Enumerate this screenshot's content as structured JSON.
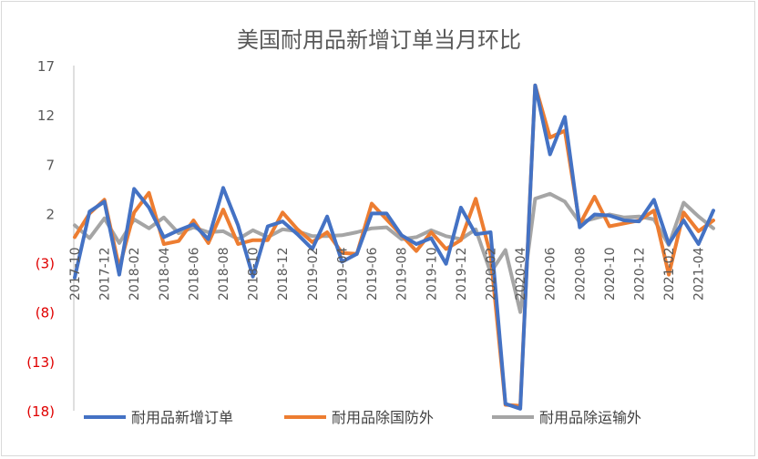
{
  "chart_data": {
    "type": "line",
    "title": "美国耐用品新增订单当月环比",
    "xlabel": "",
    "ylabel": "",
    "ylim": [
      -18,
      17
    ],
    "yticks": [
      17,
      12,
      7,
      2,
      -3,
      -8,
      -13,
      -18
    ],
    "ytick_labels": [
      "17",
      "12",
      "7",
      "2",
      "(3)",
      "(8)",
      "(13)",
      "(18)"
    ],
    "x": [
      "2017-10",
      "2017-11",
      "2017-12",
      "2018-01",
      "2018-02",
      "2018-03",
      "2018-04",
      "2018-05",
      "2018-06",
      "2018-07",
      "2018-08",
      "2018-09",
      "2018-10",
      "2018-11",
      "2018-12",
      "2019-01",
      "2019-02",
      "2019-03",
      "2019-04",
      "2019-05",
      "2019-06",
      "2019-07",
      "2019-08",
      "2019-09",
      "2019-10",
      "2019-11",
      "2019-12",
      "2020-01",
      "2020-02",
      "2020-03",
      "2020-04",
      "2020-05",
      "2020-06",
      "2020-07",
      "2020-08",
      "2020-09",
      "2020-10",
      "2020-11",
      "2020-12",
      "2021-01",
      "2021-02",
      "2021-03",
      "2021-04",
      "2021-05"
    ],
    "xtick_labels": [
      "2017-10",
      "2017-12",
      "2018-02",
      "2018-04",
      "2018-06",
      "2018-08",
      "2018-10",
      "2018-12",
      "2019-02",
      "2019-04",
      "2019-06",
      "2019-08",
      "2019-10",
      "2019-12",
      "2020-02",
      "2020-04",
      "2020-06",
      "2020-08",
      "2020-10",
      "2020-12",
      "2021-02",
      "2021-04"
    ],
    "series": [
      {
        "name": "耐用品新增订单",
        "color": "#4472c4",
        "values": [
          -4.5,
          2.2,
          3.2,
          -4.2,
          4.5,
          2.6,
          -0.4,
          0.3,
          0.9,
          -0.6,
          4.6,
          0.8,
          -4.4,
          0.7,
          1.2,
          -0.1,
          -1.6,
          1.7,
          -2.9,
          -2.1,
          2.0,
          2.0,
          -0.2,
          -1.1,
          -0.5,
          -3.1,
          2.6,
          -0.1,
          0.1,
          -17.3,
          -17.8,
          15.0,
          8.0,
          11.8,
          0.6,
          1.9,
          1.8,
          1.3,
          1.2,
          3.4,
          -1.1,
          1.3,
          -1.1,
          2.3
        ]
      },
      {
        "name": "耐用品除国防外",
        "color": "#ed7d31",
        "values": [
          -0.4,
          2.0,
          3.4,
          -3.5,
          2.1,
          4.1,
          -1.1,
          -0.8,
          1.3,
          -1.0,
          2.4,
          -1.1,
          -0.7,
          -0.7,
          2.1,
          0.4,
          -0.9,
          0.1,
          -2.0,
          -2.1,
          3.0,
          1.4,
          -0.2,
          -1.8,
          0.1,
          -1.6,
          -0.7,
          3.5,
          -2.2,
          -17.4,
          -17.5,
          15.0,
          9.7,
          10.4,
          0.9,
          3.7,
          0.7,
          1.0,
          1.3,
          2.3,
          -4.2,
          2.1,
          0.2,
          1.3
        ]
      },
      {
        "name": "耐用品除运输外",
        "color": "#a5a5a5",
        "values": [
          0.8,
          -0.5,
          1.5,
          -1.0,
          1.4,
          0.5,
          1.6,
          0.0,
          0.6,
          0.1,
          0.2,
          -0.6,
          0.3,
          -0.4,
          0.4,
          0.2,
          -0.3,
          -0.3,
          -0.2,
          0.1,
          0.5,
          0.6,
          -0.6,
          -0.4,
          0.3,
          -0.3,
          -0.6,
          0.4,
          -4.0,
          -1.7,
          -8.0,
          3.5,
          4.0,
          3.2,
          1.1,
          1.5,
          1.9,
          1.6,
          1.7,
          1.4,
          -1.2,
          3.1,
          1.7,
          0.5
        ]
      }
    ],
    "legend": "bottom",
    "grid": false
  }
}
